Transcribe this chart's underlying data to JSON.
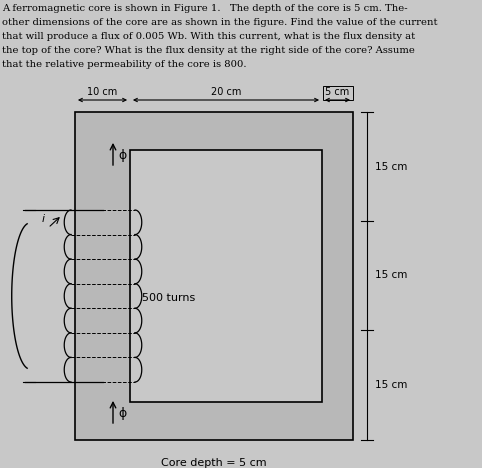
{
  "background_color": "#c8c8c8",
  "text_color": "#000000",
  "title_text_line1": "A ferromagnetic core is shown in Figure 1.   The depth of the core is 5 cm. The-",
  "title_text_line2": "other dimensions of the core are as shown in the figure. Find the value of the current",
  "title_text_line3": "that will produce a flux of 0.005 Wb. With this current, what is the flux density at",
  "title_text_line4": "the top of the core? What is the flux density at the right side of the core? Assume",
  "title_text_line5": "that the relative permeability of the core is 800.",
  "fig_width": 4.82,
  "fig_height": 4.68,
  "dpi": 100,
  "dim_10cm": "10 cm",
  "dim_20cm": "20 cm",
  "dim_5cm": "5 cm",
  "dim_15cm_top": "15 cm",
  "dim_15cm_mid": "15 cm",
  "dim_15cm_bot": "15 cm",
  "label_500turns": "500 turns",
  "label_coredepth": "Core depth = 5 cm",
  "label_phi": "ϕ",
  "label_i": "i"
}
